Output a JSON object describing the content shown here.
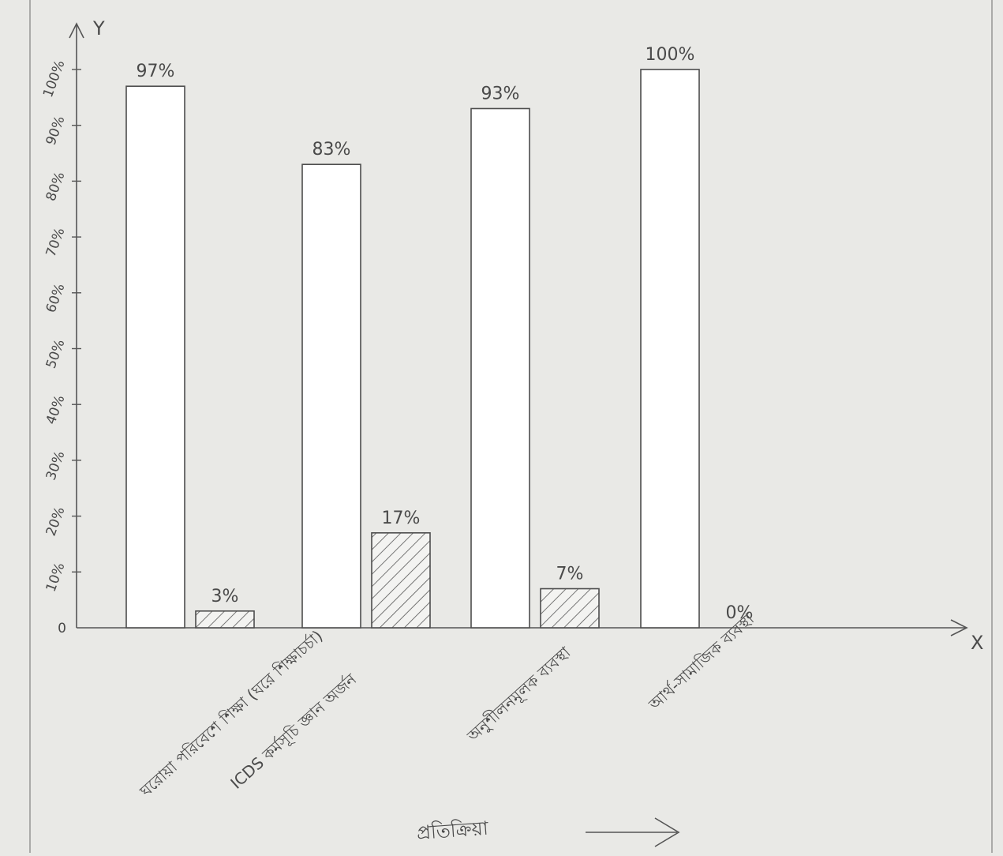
{
  "chart_data": {
    "type": "bar",
    "title": "",
    "xlabel": "প্রতিক্রিয়া",
    "ylabel": "",
    "y_axis_symbol": "Y",
    "x_axis_symbol": "X",
    "ylim": [
      0,
      100
    ],
    "y_ticks": [
      "0",
      "10%",
      "20%",
      "30%",
      "40%",
      "50%",
      "60%",
      "70%",
      "80%",
      "90%",
      "100%"
    ],
    "categories": [
      "ঘরোয়া পরিবেশে শিক্ষা (ঘরে শিক্ষাচর্চা)",
      "ICDS কর্মসূচি জ্ঞান অর্জন",
      "অনুশীলনমূলক ব্যবস্থা",
      "আর্থ-সামাজিক ব্যবস্থা"
    ],
    "series": [
      {
        "values": [
          97,
          83,
          93,
          100
        ],
        "labels": [
          "97%",
          "83%",
          "93%",
          "100%"
        ],
        "fill": "#ffffff"
      },
      {
        "values": [
          3,
          17,
          7,
          0
        ],
        "labels": [
          "3%",
          "17%",
          "7%",
          "0%"
        ],
        "fill": "hatch"
      }
    ],
    "grid": false,
    "colors": {
      "ink": "#4a4a4a",
      "paper": "#e9e9e6",
      "bar": "#ffffff"
    }
  }
}
